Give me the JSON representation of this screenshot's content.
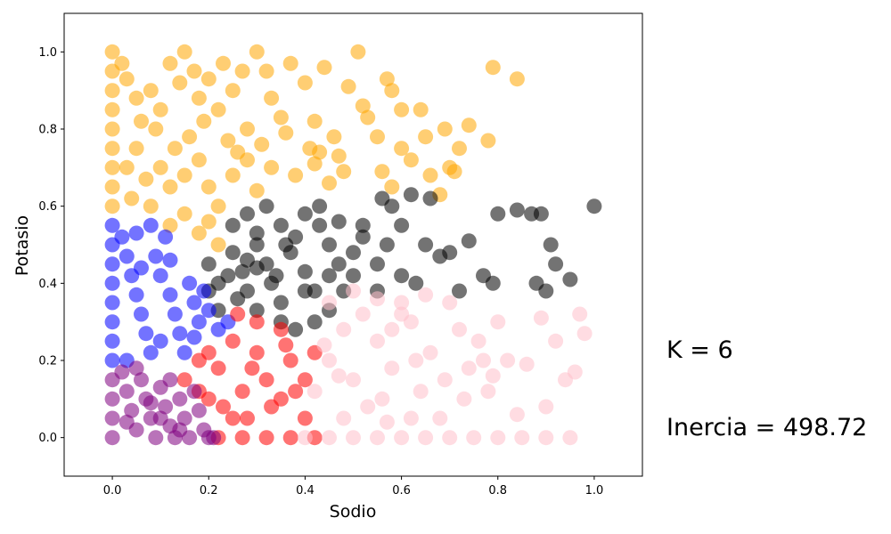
{
  "chart_data": {
    "type": "scatter",
    "xlabel": "Sodio",
    "ylabel": "Potasio",
    "xlim": [
      -0.1,
      1.1
    ],
    "ylim": [
      -0.1,
      1.1
    ],
    "xticks": [
      "0.0",
      "0.2",
      "0.4",
      "0.6",
      "0.8",
      "1.0"
    ],
    "yticks": [
      "0.0",
      "0.2",
      "0.4",
      "0.6",
      "0.8",
      "1.0"
    ],
    "grid": false,
    "annotations": [
      "K = 6",
      "Inercia = 498.72"
    ],
    "series": [
      {
        "color": "#ffa500",
        "points": [
          [
            0.0,
            1.0
          ],
          [
            0.0,
            0.95
          ],
          [
            0.0,
            0.9
          ],
          [
            0.0,
            0.85
          ],
          [
            0.0,
            0.8
          ],
          [
            0.0,
            0.75
          ],
          [
            0.0,
            0.7
          ],
          [
            0.0,
            0.65
          ],
          [
            0.0,
            0.6
          ],
          [
            0.02,
            0.97
          ],
          [
            0.03,
            0.93
          ],
          [
            0.05,
            0.88
          ],
          [
            0.06,
            0.82
          ],
          [
            0.08,
            0.9
          ],
          [
            0.1,
            0.85
          ],
          [
            0.12,
            0.97
          ],
          [
            0.14,
            0.92
          ],
          [
            0.15,
            1.0
          ],
          [
            0.17,
            0.95
          ],
          [
            0.18,
            0.88
          ],
          [
            0.2,
            0.93
          ],
          [
            0.22,
            0.85
          ],
          [
            0.23,
            0.97
          ],
          [
            0.25,
            0.9
          ],
          [
            0.27,
            0.95
          ],
          [
            0.28,
            0.8
          ],
          [
            0.3,
            1.0
          ],
          [
            0.32,
            0.95
          ],
          [
            0.33,
            0.88
          ],
          [
            0.35,
            0.83
          ],
          [
            0.37,
            0.97
          ],
          [
            0.4,
            0.92
          ],
          [
            0.42,
            0.82
          ],
          [
            0.44,
            0.96
          ],
          [
            0.46,
            0.78
          ],
          [
            0.49,
            0.91
          ],
          [
            0.51,
            1.0
          ],
          [
            0.52,
            0.86
          ],
          [
            0.55,
            0.78
          ],
          [
            0.57,
            0.93
          ],
          [
            0.58,
            0.9
          ],
          [
            0.6,
            0.75
          ],
          [
            0.62,
            0.72
          ],
          [
            0.64,
            0.85
          ],
          [
            0.66,
            0.68
          ],
          [
            0.69,
            0.8
          ],
          [
            0.7,
            0.7
          ],
          [
            0.72,
            0.75
          ],
          [
            0.74,
            0.81
          ],
          [
            0.78,
            0.77
          ],
          [
            0.79,
            0.96
          ],
          [
            0.84,
            0.93
          ],
          [
            0.05,
            0.75
          ],
          [
            0.1,
            0.7
          ],
          [
            0.12,
            0.65
          ],
          [
            0.15,
            0.68
          ],
          [
            0.18,
            0.72
          ],
          [
            0.2,
            0.65
          ],
          [
            0.22,
            0.6
          ],
          [
            0.25,
            0.68
          ],
          [
            0.28,
            0.72
          ],
          [
            0.3,
            0.64
          ],
          [
            0.33,
            0.7
          ],
          [
            0.38,
            0.68
          ],
          [
            0.42,
            0.71
          ],
          [
            0.45,
            0.66
          ],
          [
            0.48,
            0.69
          ],
          [
            0.56,
            0.69
          ],
          [
            0.58,
            0.65
          ],
          [
            0.08,
            0.6
          ],
          [
            0.12,
            0.55
          ],
          [
            0.15,
            0.58
          ],
          [
            0.18,
            0.53
          ],
          [
            0.2,
            0.56
          ],
          [
            0.22,
            0.5
          ],
          [
            0.03,
            0.7
          ],
          [
            0.04,
            0.62
          ],
          [
            0.07,
            0.67
          ],
          [
            0.09,
            0.8
          ],
          [
            0.13,
            0.75
          ],
          [
            0.16,
            0.78
          ],
          [
            0.19,
            0.82
          ],
          [
            0.24,
            0.77
          ],
          [
            0.26,
            0.74
          ],
          [
            0.31,
            0.76
          ],
          [
            0.36,
            0.79
          ],
          [
            0.41,
            0.75
          ],
          [
            0.43,
            0.74
          ],
          [
            0.47,
            0.73
          ],
          [
            0.53,
            0.83
          ],
          [
            0.6,
            0.85
          ],
          [
            0.65,
            0.78
          ],
          [
            0.71,
            0.69
          ],
          [
            0.68,
            0.63
          ]
        ]
      },
      {
        "color": "#000000",
        "points": [
          [
            0.2,
            0.45
          ],
          [
            0.22,
            0.4
          ],
          [
            0.25,
            0.48
          ],
          [
            0.27,
            0.43
          ],
          [
            0.28,
            0.38
          ],
          [
            0.3,
            0.5
          ],
          [
            0.32,
            0.45
          ],
          [
            0.33,
            0.4
          ],
          [
            0.35,
            0.35
          ],
          [
            0.37,
            0.48
          ],
          [
            0.4,
            0.43
          ],
          [
            0.42,
            0.38
          ],
          [
            0.25,
            0.55
          ],
          [
            0.28,
            0.58
          ],
          [
            0.3,
            0.53
          ],
          [
            0.32,
            0.6
          ],
          [
            0.35,
            0.55
          ],
          [
            0.38,
            0.52
          ],
          [
            0.4,
            0.58
          ],
          [
            0.43,
            0.55
          ],
          [
            0.45,
            0.5
          ],
          [
            0.47,
            0.45
          ],
          [
            0.5,
            0.48
          ],
          [
            0.52,
            0.52
          ],
          [
            0.55,
            0.45
          ],
          [
            0.57,
            0.5
          ],
          [
            0.58,
            0.6
          ],
          [
            0.6,
            0.55
          ],
          [
            0.62,
            0.63
          ],
          [
            0.65,
            0.5
          ],
          [
            0.66,
            0.62
          ],
          [
            0.68,
            0.47
          ],
          [
            0.7,
            0.48
          ],
          [
            0.72,
            0.38
          ],
          [
            0.74,
            0.51
          ],
          [
            0.77,
            0.42
          ],
          [
            0.79,
            0.4
          ],
          [
            0.8,
            0.58
          ],
          [
            0.84,
            0.59
          ],
          [
            0.87,
            0.58
          ],
          [
            0.89,
            0.58
          ],
          [
            0.91,
            0.5
          ],
          [
            0.92,
            0.45
          ],
          [
            0.95,
            0.41
          ],
          [
            1.0,
            0.6
          ],
          [
            0.88,
            0.4
          ],
          [
            0.9,
            0.38
          ],
          [
            0.55,
            0.38
          ],
          [
            0.6,
            0.42
          ],
          [
            0.63,
            0.4
          ],
          [
            0.5,
            0.42
          ],
          [
            0.48,
            0.38
          ],
          [
            0.45,
            0.42
          ],
          [
            0.43,
            0.6
          ],
          [
            0.47,
            0.56
          ],
          [
            0.52,
            0.55
          ],
          [
            0.56,
            0.62
          ],
          [
            0.35,
            0.3
          ],
          [
            0.3,
            0.33
          ],
          [
            0.26,
            0.36
          ],
          [
            0.22,
            0.33
          ],
          [
            0.38,
            0.28
          ],
          [
            0.42,
            0.3
          ],
          [
            0.45,
            0.33
          ],
          [
            0.4,
            0.38
          ],
          [
            0.34,
            0.42
          ],
          [
            0.28,
            0.46
          ],
          [
            0.24,
            0.42
          ],
          [
            0.2,
            0.38
          ],
          [
            0.36,
            0.5
          ],
          [
            0.3,
            0.44
          ]
        ]
      },
      {
        "color": "#0000ff",
        "points": [
          [
            0.0,
            0.55
          ],
          [
            0.0,
            0.5
          ],
          [
            0.0,
            0.45
          ],
          [
            0.0,
            0.4
          ],
          [
            0.0,
            0.35
          ],
          [
            0.0,
            0.3
          ],
          [
            0.0,
            0.25
          ],
          [
            0.0,
            0.2
          ],
          [
            0.02,
            0.52
          ],
          [
            0.03,
            0.47
          ],
          [
            0.04,
            0.42
          ],
          [
            0.05,
            0.37
          ],
          [
            0.06,
            0.32
          ],
          [
            0.07,
            0.27
          ],
          [
            0.08,
            0.22
          ],
          [
            0.09,
            0.47
          ],
          [
            0.1,
            0.42
          ],
          [
            0.12,
            0.37
          ],
          [
            0.13,
            0.32
          ],
          [
            0.14,
            0.27
          ],
          [
            0.15,
            0.22
          ],
          [
            0.16,
            0.4
          ],
          [
            0.17,
            0.35
          ],
          [
            0.18,
            0.3
          ],
          [
            0.2,
            0.33
          ],
          [
            0.22,
            0.28
          ],
          [
            0.24,
            0.3
          ],
          [
            0.11,
            0.52
          ],
          [
            0.08,
            0.55
          ],
          [
            0.05,
            0.53
          ],
          [
            0.03,
            0.2
          ],
          [
            0.1,
            0.25
          ],
          [
            0.06,
            0.44
          ],
          [
            0.12,
            0.46
          ],
          [
            0.17,
            0.26
          ],
          [
            0.19,
            0.38
          ]
        ]
      },
      {
        "color": "#ff0000",
        "points": [
          [
            0.15,
            0.15
          ],
          [
            0.18,
            0.2
          ],
          [
            0.2,
            0.1
          ],
          [
            0.22,
            0.18
          ],
          [
            0.25,
            0.25
          ],
          [
            0.27,
            0.12
          ],
          [
            0.28,
            0.05
          ],
          [
            0.3,
            0.22
          ],
          [
            0.32,
            0.15
          ],
          [
            0.33,
            0.08
          ],
          [
            0.35,
            0.28
          ],
          [
            0.37,
            0.2
          ],
          [
            0.38,
            0.12
          ],
          [
            0.4,
            0.05
          ],
          [
            0.42,
            0.22
          ],
          [
            0.25,
            0.05
          ],
          [
            0.22,
            0.0
          ],
          [
            0.27,
            0.0
          ],
          [
            0.32,
            0.0
          ],
          [
            0.37,
            0.0
          ],
          [
            0.42,
            0.0
          ],
          [
            0.3,
            0.3
          ],
          [
            0.26,
            0.32
          ],
          [
            0.2,
            0.22
          ],
          [
            0.23,
            0.08
          ],
          [
            0.35,
            0.1
          ],
          [
            0.4,
            0.15
          ],
          [
            0.36,
            0.24
          ],
          [
            0.18,
            0.12
          ],
          [
            0.29,
            0.18
          ]
        ]
      },
      {
        "color": "#ffc0cb",
        "points": [
          [
            0.4,
            0.0
          ],
          [
            0.45,
            0.0
          ],
          [
            0.5,
            0.0
          ],
          [
            0.55,
            0.0
          ],
          [
            0.6,
            0.0
          ],
          [
            0.65,
            0.0
          ],
          [
            0.7,
            0.0
          ],
          [
            0.75,
            0.0
          ],
          [
            0.8,
            0.0
          ],
          [
            0.85,
            0.0
          ],
          [
            0.9,
            0.0
          ],
          [
            0.95,
            0.0
          ],
          [
            0.42,
            0.12
          ],
          [
            0.45,
            0.2
          ],
          [
            0.48,
            0.28
          ],
          [
            0.5,
            0.15
          ],
          [
            0.52,
            0.32
          ],
          [
            0.55,
            0.25
          ],
          [
            0.58,
            0.18
          ],
          [
            0.6,
            0.35
          ],
          [
            0.62,
            0.3
          ],
          [
            0.64,
            0.12
          ],
          [
            0.66,
            0.22
          ],
          [
            0.68,
            0.05
          ],
          [
            0.7,
            0.35
          ],
          [
            0.72,
            0.28
          ],
          [
            0.74,
            0.18
          ],
          [
            0.76,
            0.25
          ],
          [
            0.78,
            0.12
          ],
          [
            0.8,
            0.3
          ],
          [
            0.82,
            0.2
          ],
          [
            0.84,
            0.06
          ],
          [
            0.86,
            0.19
          ],
          [
            0.89,
            0.31
          ],
          [
            0.92,
            0.25
          ],
          [
            0.94,
            0.15
          ],
          [
            0.97,
            0.32
          ],
          [
            0.98,
            0.27
          ],
          [
            0.96,
            0.17
          ],
          [
            0.9,
            0.08
          ],
          [
            0.45,
            0.35
          ],
          [
            0.5,
            0.38
          ],
          [
            0.55,
            0.36
          ],
          [
            0.6,
            0.32
          ],
          [
            0.65,
            0.37
          ],
          [
            0.48,
            0.05
          ],
          [
            0.53,
            0.08
          ],
          [
            0.57,
            0.04
          ],
          [
            0.62,
            0.05
          ],
          [
            0.44,
            0.24
          ],
          [
            0.47,
            0.16
          ],
          [
            0.56,
            0.1
          ],
          [
            0.63,
            0.2
          ],
          [
            0.69,
            0.15
          ],
          [
            0.73,
            0.1
          ],
          [
            0.77,
            0.2
          ],
          [
            0.79,
            0.16
          ],
          [
            0.58,
            0.28
          ]
        ]
      },
      {
        "color": "#800080",
        "points": [
          [
            0.0,
            0.15
          ],
          [
            0.0,
            0.1
          ],
          [
            0.0,
            0.05
          ],
          [
            0.0,
            0.0
          ],
          [
            0.02,
            0.17
          ],
          [
            0.03,
            0.12
          ],
          [
            0.04,
            0.07
          ],
          [
            0.05,
            0.02
          ],
          [
            0.06,
            0.15
          ],
          [
            0.07,
            0.1
          ],
          [
            0.08,
            0.05
          ],
          [
            0.09,
            0.0
          ],
          [
            0.1,
            0.13
          ],
          [
            0.11,
            0.08
          ],
          [
            0.12,
            0.03
          ],
          [
            0.13,
            0.0
          ],
          [
            0.14,
            0.1
          ],
          [
            0.15,
            0.05
          ],
          [
            0.16,
            0.0
          ],
          [
            0.18,
            0.07
          ],
          [
            0.19,
            0.02
          ],
          [
            0.2,
            0.0
          ],
          [
            0.21,
            0.0
          ],
          [
            0.17,
            0.12
          ],
          [
            0.12,
            0.15
          ],
          [
            0.05,
            0.18
          ],
          [
            0.03,
            0.04
          ],
          [
            0.08,
            0.09
          ],
          [
            0.14,
            0.02
          ],
          [
            0.1,
            0.05
          ]
        ]
      }
    ]
  }
}
